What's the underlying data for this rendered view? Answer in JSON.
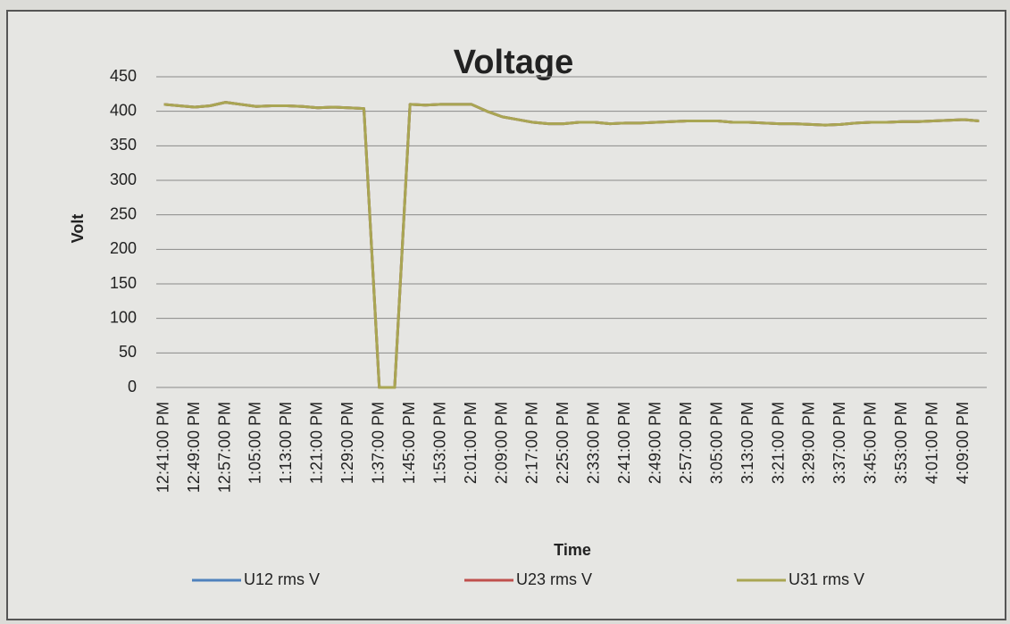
{
  "chart_data": {
    "type": "line",
    "title": "Voltage",
    "x_label": "Time",
    "y_label": "Volt",
    "categories": [
      "12:41:00 PM",
      null,
      "12:49:00 PM",
      null,
      "12:57:00 PM",
      null,
      "1:05:00 PM",
      null,
      "1:13:00 PM",
      null,
      "1:21:00 PM",
      null,
      "1:29:00 PM",
      null,
      "1:37:00 PM",
      null,
      "1:45:00 PM",
      null,
      "1:53:00 PM",
      null,
      "2:01:00 PM",
      null,
      "2:09:00 PM",
      null,
      "2:17:00 PM",
      null,
      "2:25:00 PM",
      null,
      "2:33:00 PM",
      null,
      "2:41:00 PM",
      null,
      "2:49:00 PM",
      null,
      "2:57:00 PM",
      null,
      "3:05:00 PM",
      null,
      "3:13:00 PM",
      null,
      "3:21:00 PM",
      null,
      "3:29:00 PM",
      null,
      "3:37:00 PM",
      null,
      "3:45:00 PM",
      null,
      "3:53:00 PM",
      null,
      "4:01:00 PM",
      null,
      "4:09:00 PM",
      null
    ],
    "series": [
      {
        "name": "U12 rms V",
        "color": "#4f81bd",
        "values": [
          410,
          408,
          406,
          408,
          413,
          410,
          407,
          408,
          408,
          407,
          405,
          406,
          405,
          404,
          0,
          0,
          410,
          409,
          410,
          410,
          410,
          400,
          392,
          388,
          384,
          382,
          382,
          384,
          384,
          382,
          383,
          383,
          384,
          385,
          386,
          386,
          386,
          384,
          384,
          383,
          382,
          382,
          381,
          380,
          381,
          383,
          384,
          384,
          385,
          385,
          386,
          387,
          388,
          386
        ]
      },
      {
        "name": "U23 rms V",
        "color": "#c0504d",
        "values": [
          410,
          408,
          406,
          408,
          413,
          410,
          407,
          408,
          408,
          407,
          405,
          406,
          405,
          404,
          0,
          0,
          410,
          409,
          410,
          410,
          410,
          400,
          392,
          388,
          384,
          382,
          382,
          384,
          384,
          382,
          383,
          383,
          384,
          385,
          386,
          386,
          386,
          384,
          384,
          383,
          382,
          382,
          381,
          380,
          381,
          383,
          384,
          384,
          385,
          385,
          386,
          387,
          388,
          386
        ]
      },
      {
        "name": "U31 rms V",
        "color": "#a9a653",
        "values": [
          410,
          408,
          406,
          408,
          413,
          410,
          407,
          408,
          408,
          407,
          405,
          406,
          405,
          404,
          0,
          0,
          410,
          409,
          410,
          410,
          410,
          400,
          392,
          388,
          384,
          382,
          382,
          384,
          384,
          382,
          383,
          383,
          384,
          385,
          386,
          386,
          386,
          384,
          384,
          383,
          382,
          382,
          381,
          380,
          381,
          383,
          384,
          384,
          385,
          385,
          386,
          387,
          388,
          386
        ]
      }
    ],
    "ylim": [
      0,
      450
    ],
    "yticks": [
      0,
      50,
      100,
      150,
      200,
      250,
      300,
      350,
      400,
      450
    ],
    "grid": true,
    "legend": "bottom"
  }
}
